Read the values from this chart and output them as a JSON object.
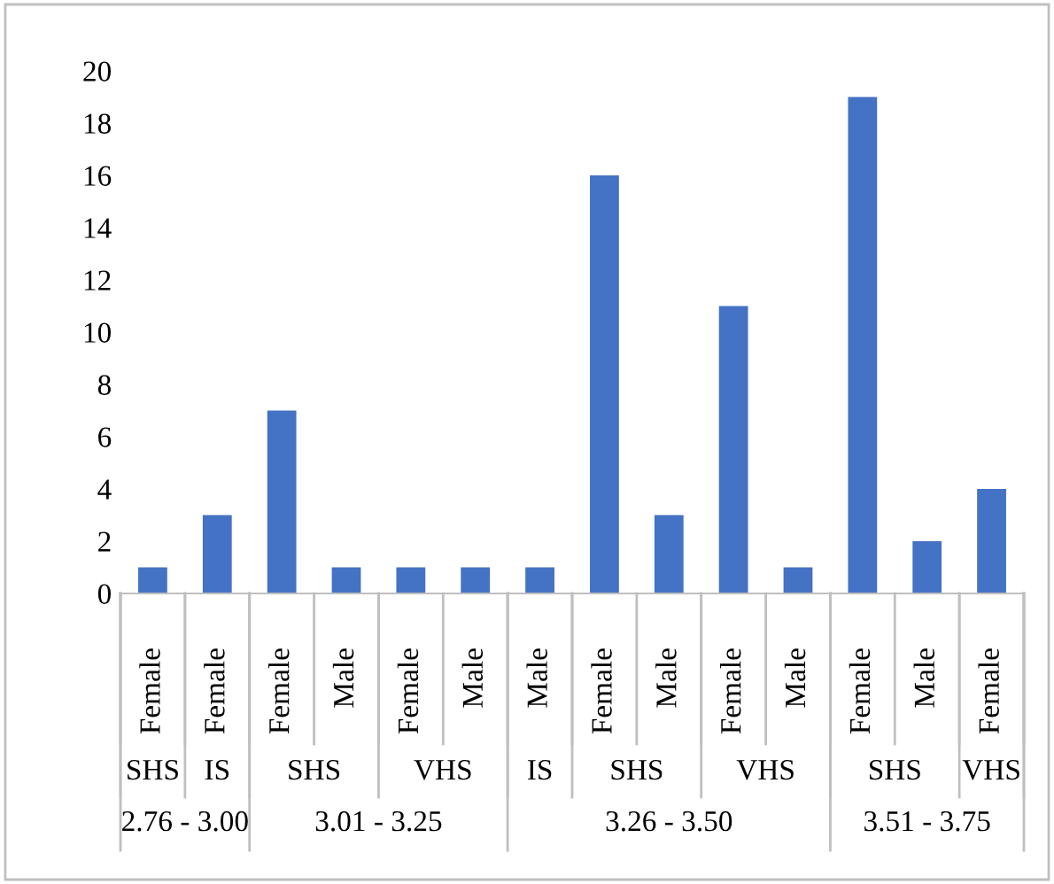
{
  "chart_data": {
    "type": "bar",
    "categories": [
      "Female",
      "Female",
      "Female",
      "Male",
      "Female",
      "Male",
      "Male",
      "Female",
      "Male",
      "Female",
      "Male",
      "Female",
      "Male",
      "Female"
    ],
    "values": [
      1,
      3,
      7,
      1,
      1,
      1,
      1,
      16,
      3,
      11,
      1,
      19,
      2,
      4
    ],
    "color": "#4472c4",
    "ylim": [
      0,
      20
    ],
    "yticks": [
      0,
      2,
      4,
      6,
      8,
      10,
      12,
      14,
      16,
      18,
      20
    ],
    "annotations": [
      "SHS",
      "IS",
      "SHS",
      "VHS",
      "IS",
      "SHS",
      "VHS",
      "SHS",
      "VHS",
      "2.76 - 3.00",
      "3.01 - 3.25",
      "3.26 - 3.50",
      "3.51 - 3.75"
    ]
  }
}
